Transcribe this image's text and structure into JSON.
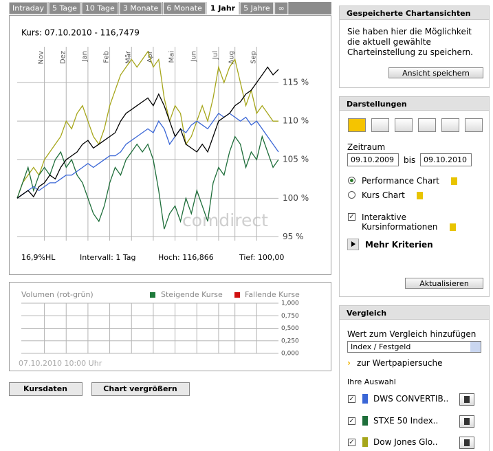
{
  "tabs": [
    "Intraday",
    "5 Tage",
    "10 Tage",
    "3 Monate",
    "6 Monate",
    "1 Jahr",
    "5 Jahre",
    "∞"
  ],
  "active_tab": 5,
  "chart_data": {
    "type": "line",
    "title": "Kurs: 07.10.2010 - 116,7479",
    "categories": [
      null,
      null,
      null,
      null,
      null,
      "Nov",
      null,
      null,
      null,
      "Dez",
      null,
      null,
      null,
      "Jan",
      null,
      null,
      null,
      "Feb",
      null,
      null,
      null,
      "Mär",
      null,
      null,
      null,
      "Apr",
      null,
      null,
      null,
      "Mai",
      null,
      null,
      null,
      "Jun",
      null,
      null,
      null,
      "Jul",
      null,
      null,
      "Aug",
      null,
      null,
      null,
      "Sep",
      null,
      null,
      null,
      null
    ],
    "ylim": [
      94.5,
      120
    ],
    "yticks": [
      {
        "value": 95,
        "label": "95 %"
      },
      {
        "value": 100,
        "label": "100 %"
      },
      {
        "value": 105,
        "label": "105 %"
      },
      {
        "value": 110,
        "label": "110 %"
      },
      {
        "value": 115,
        "label": "115 %"
      }
    ],
    "grid": true,
    "series": [
      {
        "color": "#000000",
        "values": [
          100,
          100.5,
          101,
          100.2,
          101.5,
          102,
          103,
          102.5,
          104,
          105,
          105.5,
          106,
          107,
          107.5,
          106.5,
          107,
          107.5,
          108,
          108.5,
          110,
          111,
          111.5,
          112,
          112.5,
          113,
          112,
          113.5,
          112,
          110,
          108,
          109,
          107,
          106.5,
          106,
          107,
          106,
          108,
          110,
          110.5,
          111,
          112,
          112.5,
          113.5,
          114,
          115,
          116,
          117,
          116,
          116.7
        ]
      },
      {
        "name": "DWS CONVERTIB..",
        "color": "#3a66d6",
        "values": [
          100,
          100.5,
          101,
          101.5,
          101,
          101.5,
          102,
          102,
          102.5,
          103,
          103,
          103.5,
          104,
          104.5,
          104,
          104.5,
          105,
          105.5,
          105.5,
          106,
          107,
          107.5,
          108,
          108.5,
          109,
          108.5,
          110,
          109,
          107,
          108,
          109,
          108.5,
          109.5,
          110,
          109.5,
          109,
          110,
          111,
          110.5,
          111,
          110.5,
          110,
          110.5,
          109.5,
          110,
          109,
          108,
          107,
          106
        ]
      },
      {
        "name": "STXE 50 Index..",
        "color": "#1e6e3a",
        "values": [
          100,
          102,
          104,
          101,
          103,
          104,
          103,
          105,
          106,
          104,
          105,
          103,
          102,
          100,
          98,
          97,
          99,
          102,
          104,
          103,
          105,
          106,
          107,
          106,
          107,
          105,
          101,
          96,
          98,
          99,
          97,
          100,
          98,
          101,
          99,
          97,
          102,
          104,
          103,
          106,
          108,
          107,
          104,
          106,
          105,
          108,
          106,
          104,
          105
        ]
      },
      {
        "name": "Dow Jones Glo..",
        "color": "#a6a61a",
        "values": [
          100,
          102,
          103,
          104,
          103,
          105,
          106,
          107,
          108,
          110,
          109,
          111,
          112,
          110,
          108,
          107,
          109,
          112,
          114,
          116,
          117,
          118,
          117,
          118,
          119,
          117,
          118,
          113,
          110,
          112,
          111,
          107,
          108,
          110,
          112,
          110,
          113,
          117,
          115,
          117,
          118,
          115,
          112,
          114,
          111,
          112,
          111,
          110,
          110
        ]
      }
    ]
  },
  "stats": [
    "16,9%HL",
    "Intervall: 1 Tag",
    "Hoch: 116,866",
    "Tief: 100,00"
  ],
  "watermark": "comdirect",
  "volume": {
    "title": "Volumen (rot-grün)",
    "legend": [
      {
        "name": "Steigende Kurse",
        "color": "#1e7a3a"
      },
      {
        "name": "Fallende Kurse",
        "color": "#d01010"
      }
    ],
    "ylim": [
      0,
      1
    ],
    "yticks": [
      {
        "value": 0,
        "label": "0,000"
      },
      {
        "value": 0.25,
        "label": "0,250"
      },
      {
        "value": 0.5,
        "label": "0,500"
      },
      {
        "value": 0.75,
        "label": "0,750"
      },
      {
        "value": 1,
        "label": "1,000"
      }
    ],
    "timestamp": "07.10.2010 10:00 Uhr"
  },
  "buttons": [
    "Kursdaten",
    "Chart vergrößern"
  ],
  "sidebar": {
    "saved": {
      "title": "Gespeicherte Chartansichten",
      "text": [
        "Sie haben hier die Möglichkeit",
        "die aktuell gewählte",
        "Charteinstellung zu speichern."
      ],
      "button": "Ansicht speichern"
    },
    "display": {
      "title": "Darstellungen",
      "period_label": "Zeitraum",
      "from": "09.10.2009",
      "to_label": "bis",
      "to": "09.10.2010",
      "options": [
        "Performance Chart",
        "Kurs Chart"
      ],
      "selected": 0,
      "interactive": [
        "Interaktive",
        "Kursinformationen"
      ],
      "interactive_checked": true,
      "more": "Mehr Kriterien",
      "button": "Aktualisieren"
    },
    "compare": {
      "title": "Vergleich",
      "add_label": "Wert zum Vergleich hinzufügen",
      "select": "Index / Festgeld",
      "search": "zur Wertpapiersuche",
      "selection_label": "Ihre Auswahl"
    }
  }
}
